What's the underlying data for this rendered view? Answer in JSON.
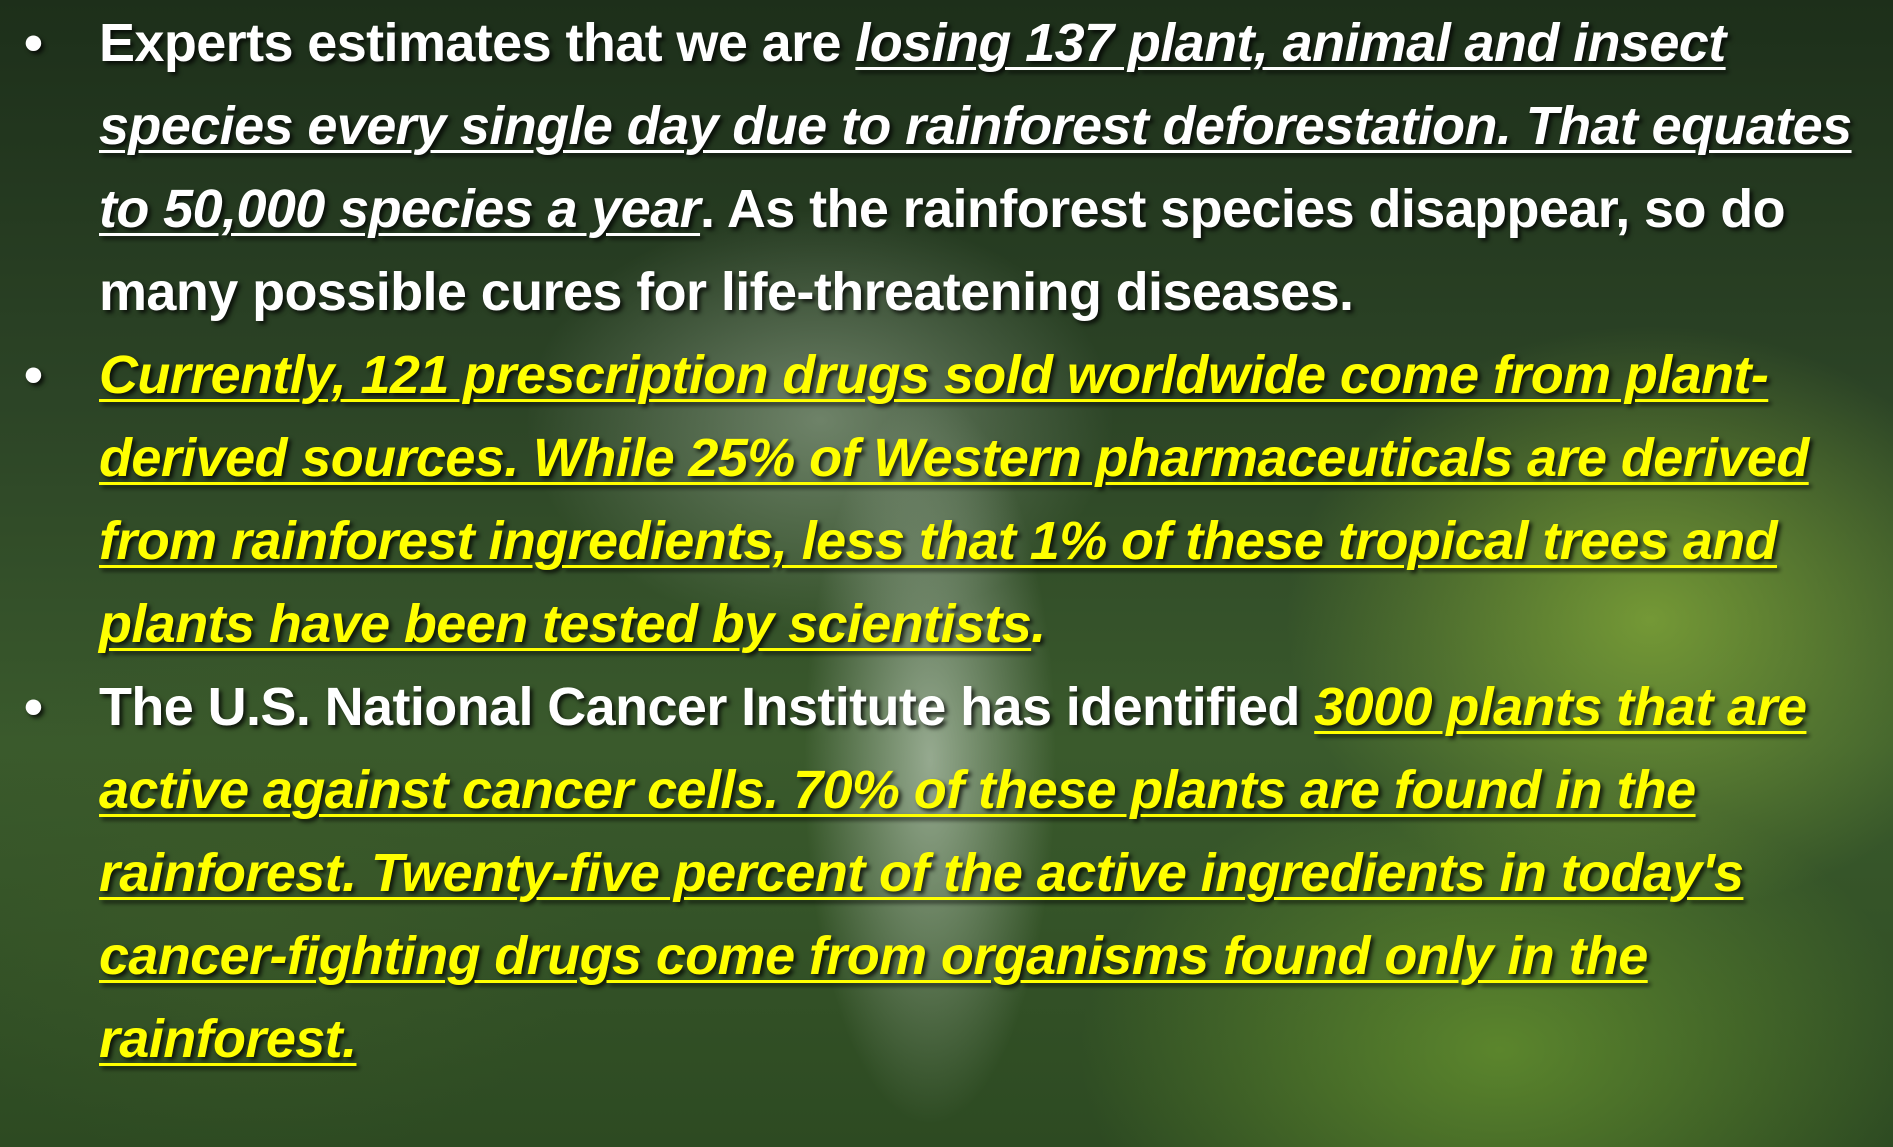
{
  "bullets": [
    {
      "runs": [
        {
          "text": "Experts estimates that we are "
        },
        {
          "text": "losing 137 plant, animal and insect species every single day due to rainforest deforestation. That equates to 50,000 species a year"
        },
        {
          "text": ". As the rainforest species disappear, so do many possible cures for life-threatening diseases."
        }
      ]
    },
    {
      "runs": [
        {
          "text": "Currently, 121 prescription drugs sold worldwide come from plant-derived sources. While 25% of Western pharmaceuticals are derived from rainforest ingredients, less that 1% of these tropical trees and plants have been tested by scientists"
        },
        {
          "text": "."
        }
      ]
    },
    {
      "runs": [
        {
          "text": "The U.S. National Cancer Institute has identified "
        },
        {
          "text": "3000 plants that are active against cancer cells. 70% of these plants are found in the rainforest. Twenty-five percent of the active ingredients in today's cancer-fighting drugs come from organisms found only in the rainforest."
        }
      ]
    }
  ]
}
